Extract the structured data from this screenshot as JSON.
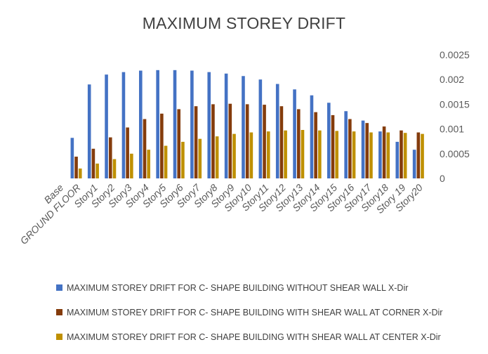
{
  "chart_data": {
    "type": "bar",
    "title": "MAXIMUM STOREY DRIFT",
    "categories": [
      "Base",
      "GROUND FLOOR",
      "Story1",
      "Story2",
      "Story3",
      "Story4",
      "Story5",
      "Story6",
      "Story7",
      "Story8",
      "Story9",
      "Story10",
      "Story11",
      "Story12",
      "Story13",
      "Story14",
      "Story15",
      "Story16",
      "Story17",
      "Story18",
      "Story 19",
      "Story20"
    ],
    "series": [
      {
        "name": "MAXIMUM STOREY DRIFT FOR C- SHAPE BUILDING WITHOUT SHEAR WALL X-Dir",
        "color": "#4472C4",
        "values": [
          0,
          0.00082,
          0.0019,
          0.0021,
          0.00215,
          0.00218,
          0.00219,
          0.00219,
          0.00218,
          0.00215,
          0.00212,
          0.00207,
          0.002,
          0.00191,
          0.0018,
          0.00168,
          0.00153,
          0.00136,
          0.00117,
          0.00095,
          0.00074,
          0.00058
        ]
      },
      {
        "name": "MAXIMUM STOREY DRIFT FOR C- SHAPE BUILDING WITH SHEAR WALL AT CORNER X-Dir",
        "color": "#843C0C",
        "values": [
          0,
          0.00044,
          0.0006,
          0.00083,
          0.00103,
          0.0012,
          0.00131,
          0.0014,
          0.00146,
          0.0015,
          0.00151,
          0.0015,
          0.00149,
          0.00146,
          0.0014,
          0.00134,
          0.00128,
          0.0012,
          0.00112,
          0.00105,
          0.00097,
          0.00093
        ]
      },
      {
        "name": "MAXIMUM STOREY DRIFT FOR C- SHAPE BUILDING WITH SHEAR WALL AT CENTER X-Dir",
        "color": "#BF9000",
        "values": [
          0,
          0.0002,
          0.0003,
          0.00039,
          0.0005,
          0.00058,
          0.00066,
          0.00074,
          0.0008,
          0.00085,
          0.0009,
          0.00093,
          0.00095,
          0.00097,
          0.00098,
          0.00097,
          0.00096,
          0.00095,
          0.00093,
          0.00093,
          0.00092,
          0.0009
        ]
      }
    ],
    "ylim": [
      0,
      0.0025
    ],
    "yticks": [
      "0",
      "0.0005",
      "0.001",
      "0.0015",
      "0.002",
      "0.0025"
    ],
    "y_axis_position": "right",
    "gridlines": false,
    "legend_position": "bottom"
  }
}
